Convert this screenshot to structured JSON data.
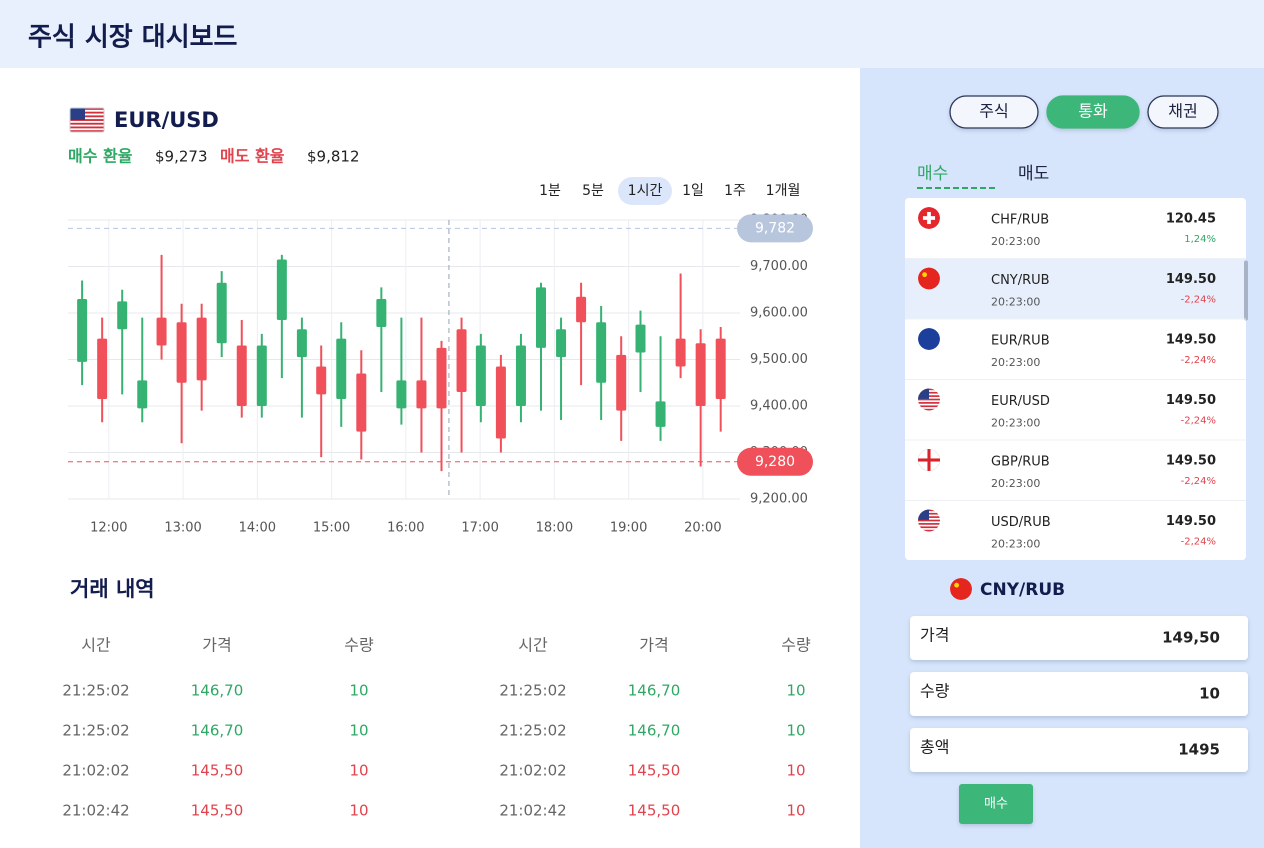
{
  "header": {
    "title": "주식 시장 대시보드"
  },
  "chart_panel": {
    "pair": "EUR/USD",
    "buy_label": "매수 환율",
    "buy_value": "$9,273",
    "sell_label": "매도 환율",
    "sell_value": "$9,812",
    "timeframes": [
      "1분",
      "5분",
      "1시간",
      "1일",
      "1주",
      "1개월"
    ],
    "active_timeframe": 2
  },
  "chart_data": {
    "type": "candlestick",
    "x": [
      11.64,
      11.91,
      12.18,
      12.45,
      12.71,
      12.98,
      13.25,
      13.52,
      13.79,
      14.06,
      14.33,
      14.6,
      14.86,
      15.13,
      15.4,
      15.67,
      15.94,
      16.21,
      16.48,
      16.75,
      17.01,
      17.28,
      17.55,
      17.82,
      18.09,
      18.36,
      18.63,
      18.9,
      19.16,
      19.43,
      19.7,
      19.97,
      20.24
    ],
    "open": [
      9495,
      9545,
      9565,
      9395,
      9590,
      9580,
      9590,
      9535,
      9530,
      9400,
      9585,
      9505,
      9485,
      9415,
      9470,
      9570,
      9395,
      9455,
      9525,
      9565,
      9400,
      9485,
      9400,
      9525,
      9505,
      9635,
      9450,
      9510,
      9515,
      9355,
      9545,
      9535,
      9545
    ],
    "high": [
      9670,
      9590,
      9650,
      9590,
      9725,
      9620,
      9620,
      9690,
      9585,
      9555,
      9725,
      9590,
      9530,
      9580,
      9520,
      9655,
      9590,
      9590,
      9540,
      9590,
      9555,
      9510,
      9555,
      9665,
      9590,
      9665,
      9615,
      9550,
      9605,
      9550,
      9685,
      9565,
      9570
    ],
    "low": [
      9445,
      9365,
      9425,
      9365,
      9500,
      9320,
      9390,
      9505,
      9375,
      9375,
      9460,
      9375,
      9290,
      9355,
      9285,
      9430,
      9360,
      9300,
      9260,
      9300,
      9365,
      9300,
      9365,
      9390,
      9370,
      9445,
      9370,
      9325,
      9430,
      9325,
      9460,
      9270,
      9345
    ],
    "close": [
      9630,
      9415,
      9625,
      9455,
      9530,
      9450,
      9455,
      9665,
      9400,
      9530,
      9715,
      9565,
      9425,
      9545,
      9345,
      9630,
      9455,
      9395,
      9395,
      9430,
      9530,
      9330,
      9530,
      9655,
      9565,
      9580,
      9580,
      9390,
      9575,
      9410,
      9485,
      9400,
      9415
    ],
    "up_color": "#36b273",
    "down_color": "#f0505a",
    "xlim": [
      11.45,
      20.5
    ],
    "xticks": [
      {
        "value": 12,
        "label": "12:00"
      },
      {
        "value": 13,
        "label": "13:00"
      },
      {
        "value": 14,
        "label": "14:00"
      },
      {
        "value": 15,
        "label": "15:00"
      },
      {
        "value": 16,
        "label": "16:00"
      },
      {
        "value": 17,
        "label": "17:00"
      },
      {
        "value": 18,
        "label": "18:00"
      },
      {
        "value": 19,
        "label": "19:00"
      },
      {
        "value": 20,
        "label": "20:00"
      }
    ],
    "ylim": [
      9200,
      9800
    ],
    "yticks": [
      {
        "value": 9200,
        "label": "9,200.00"
      },
      {
        "value": 9300,
        "label": "9,300.00"
      },
      {
        "value": 9400,
        "label": "9,400.00"
      },
      {
        "value": 9500,
        "label": "9,500.00"
      },
      {
        "value": 9600,
        "label": "9,600.00"
      },
      {
        "value": 9700,
        "label": "9,700.00"
      },
      {
        "value": 9800,
        "label": "9,800.00"
      }
    ],
    "grid": true,
    "reference_lines": [
      {
        "value": 9782,
        "label": "9,782",
        "color": "#b7c5dd"
      },
      {
        "value": 9280,
        "label": "9,280",
        "color": "#f0505a"
      }
    ],
    "crosshair_x": 16.58
  },
  "trades": {
    "title": "거래 내역",
    "tables": [
      {
        "headers": [
          "시간",
          "가격",
          "수량"
        ],
        "rows": [
          {
            "time": "21:25:02",
            "price": "146,70",
            "qty": "10",
            "color": "#2fa865"
          },
          {
            "time": "21:25:02",
            "price": "146,70",
            "qty": "10",
            "color": "#2fa865"
          },
          {
            "time": "21:02:02",
            "price": "145,50",
            "qty": "10",
            "color": "#e0444e"
          },
          {
            "time": "21:02:42",
            "price": "145,50",
            "qty": "10",
            "color": "#e0444e"
          }
        ]
      },
      {
        "headers": [
          "시간",
          "가격",
          "수량"
        ],
        "rows": [
          {
            "time": "21:25:02",
            "price": "146,70",
            "qty": "10",
            "color": "#2fa865"
          },
          {
            "time": "21:25:02",
            "price": "146,70",
            "qty": "10",
            "color": "#2fa865"
          },
          {
            "time": "21:02:02",
            "price": "145,50",
            "qty": "10",
            "color": "#e0444e"
          },
          {
            "time": "21:02:42",
            "price": "145,50",
            "qty": "10",
            "color": "#e0444e"
          }
        ]
      }
    ]
  },
  "sidebar": {
    "tabs": [
      "주식",
      "통화",
      "채권"
    ],
    "active_tab": 1,
    "subtabs": [
      "매수",
      "매도"
    ],
    "active_subtab": 0,
    "pairs": [
      {
        "pair": "CHF/RUB",
        "time": "20:23:00",
        "price": "120.45",
        "change": "1,24%",
        "color": "#2fa865"
      },
      {
        "pair": "CNY/RUB",
        "time": "20:23:00",
        "price": "149.50",
        "change": "-2,24%",
        "color": "#e0444e"
      },
      {
        "pair": "EUR/RUB",
        "time": "20:23:00",
        "price": "149.50",
        "change": "-2,24%",
        "color": "#e0444e"
      },
      {
        "pair": "EUR/USD",
        "time": "20:23:00",
        "price": "149.50",
        "change": "-2,24%",
        "color": "#e0444e"
      },
      {
        "pair": "GBP/RUB",
        "time": "20:23:00",
        "price": "149.50",
        "change": "-2,24%",
        "color": "#e0444e"
      },
      {
        "pair": "USD/RUB",
        "time": "20:23:00",
        "price": "149.50",
        "change": "-2,24%",
        "color": "#e0444e"
      }
    ],
    "selected_pair": 1,
    "order": {
      "pair": "CNY/RUB",
      "fields": [
        {
          "label": "가격",
          "value": "149,50"
        },
        {
          "label": "수량",
          "value": "10"
        },
        {
          "label": "총액",
          "value": "1495"
        }
      ],
      "button": "매수"
    }
  }
}
